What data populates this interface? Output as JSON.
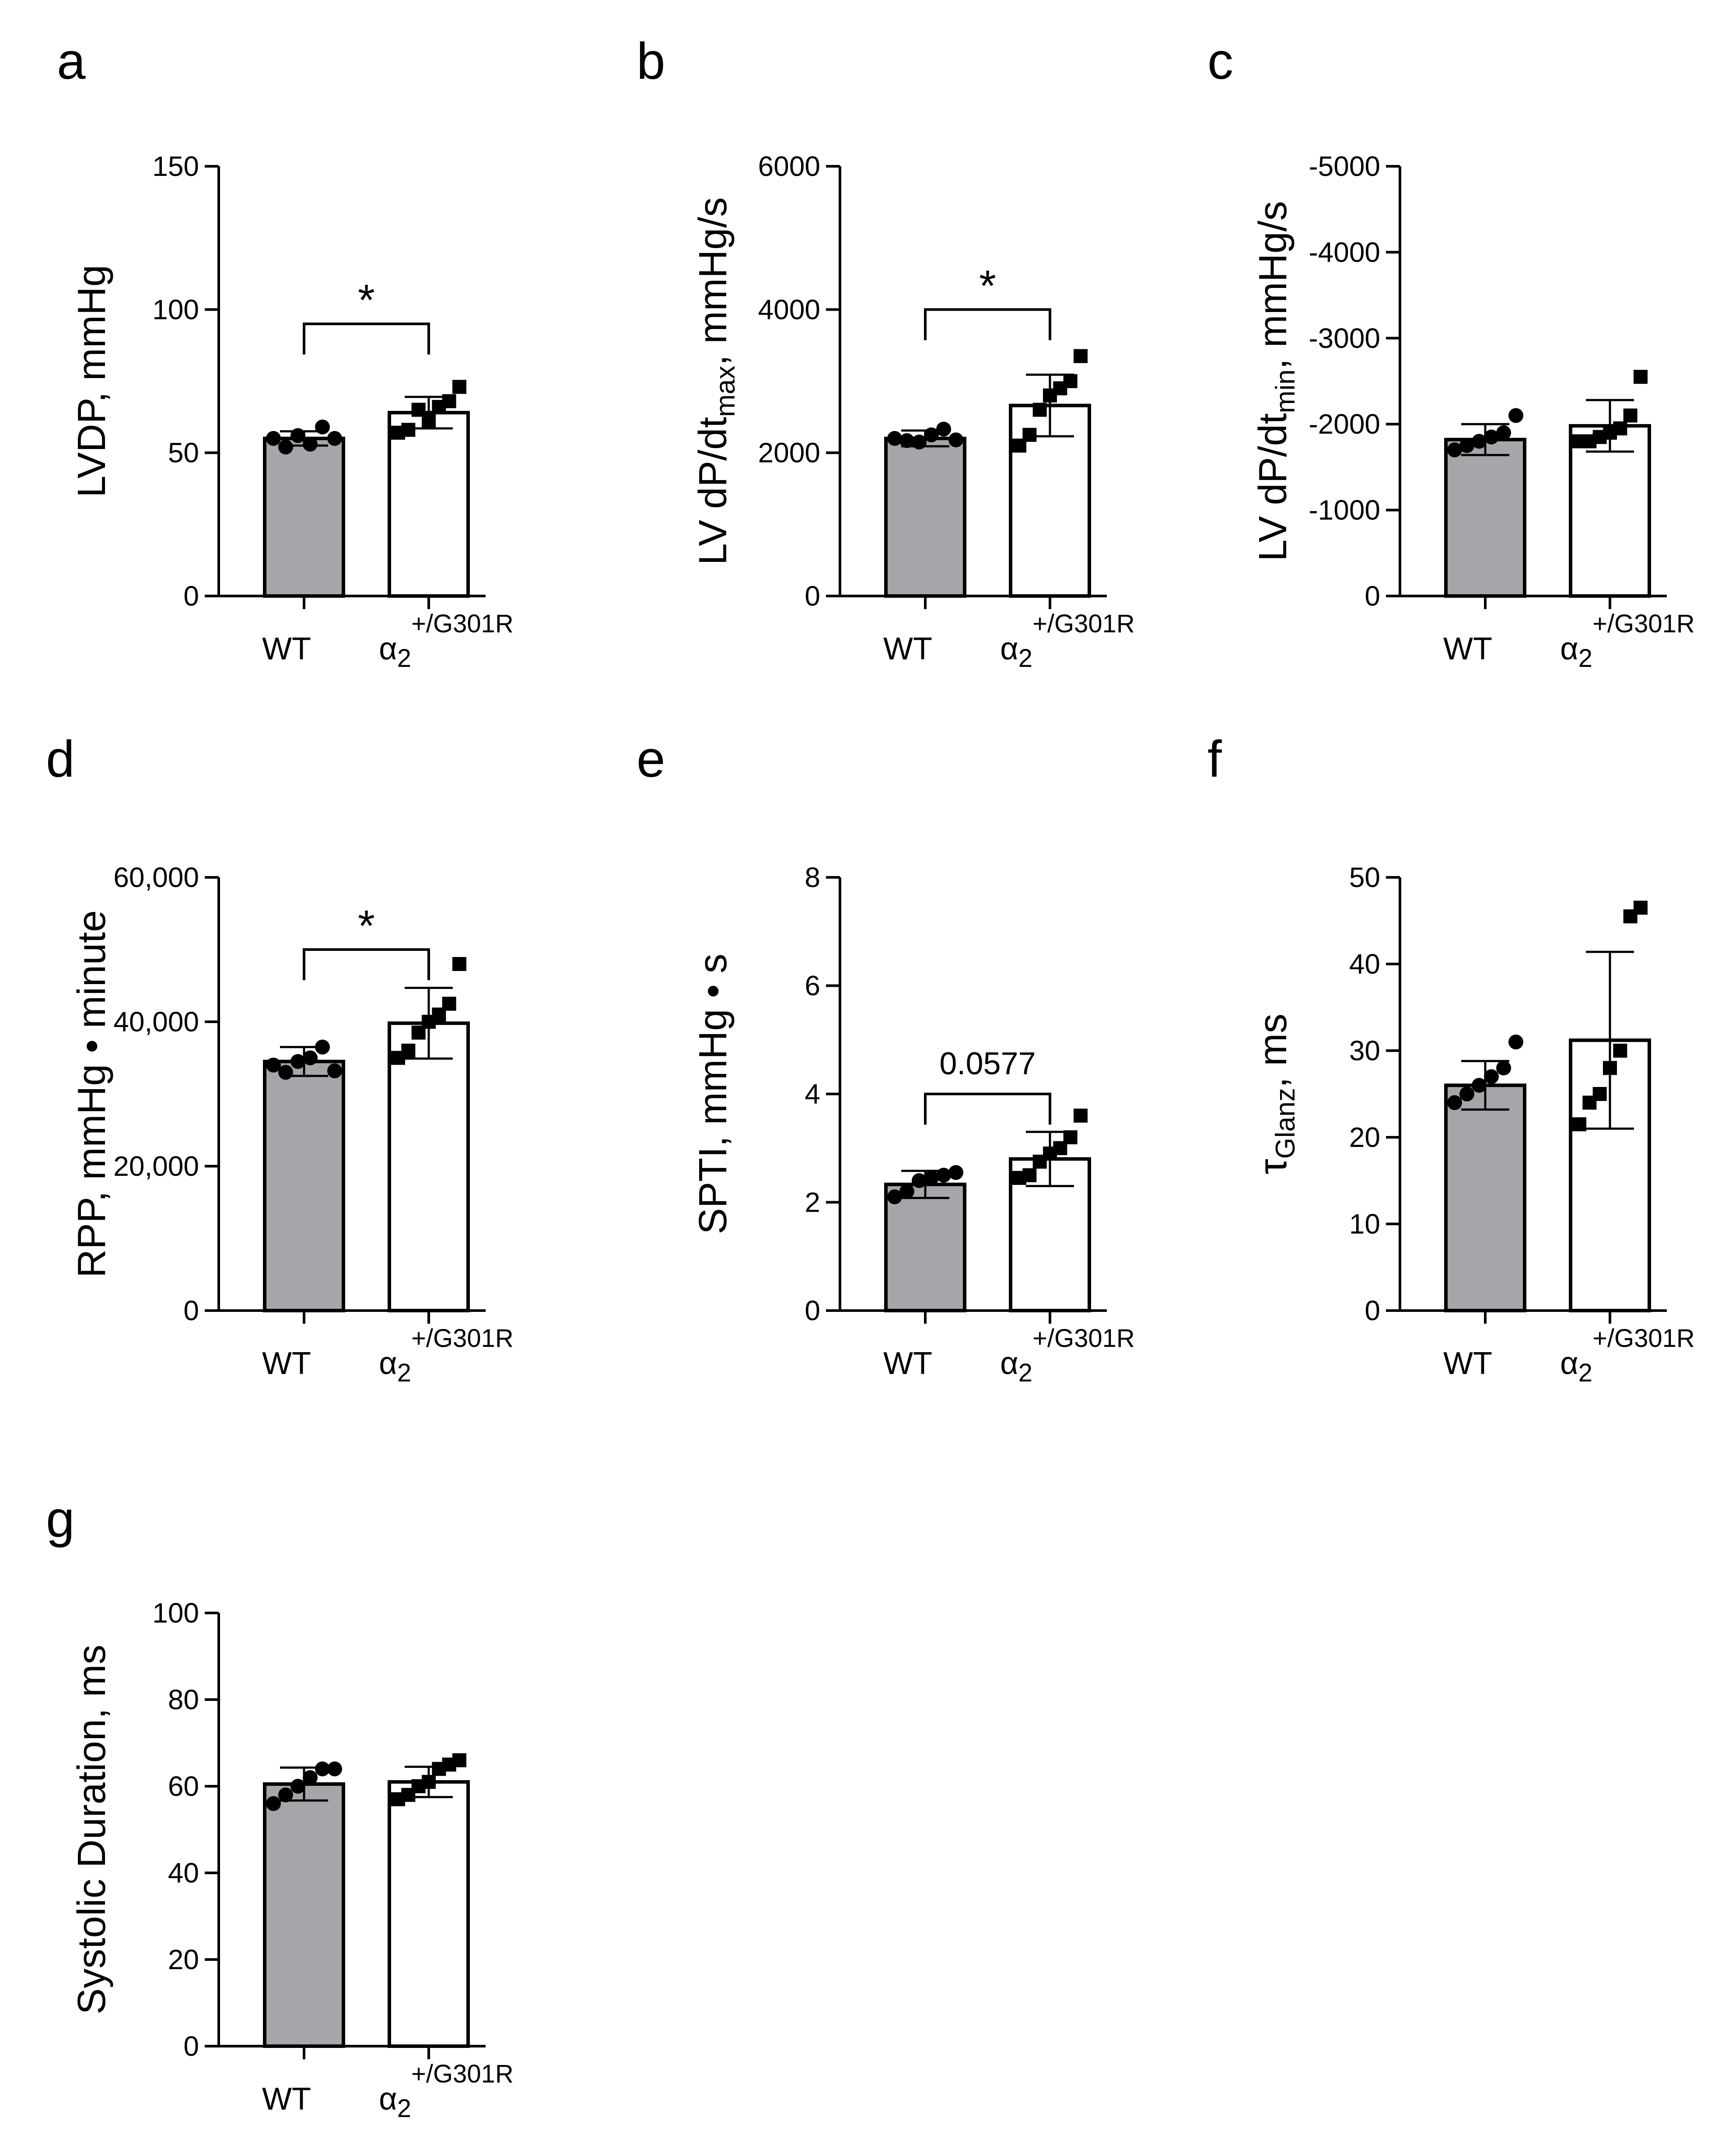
{
  "figure": {
    "panels": [
      "a",
      "b",
      "c",
      "d",
      "e",
      "f",
      "g"
    ]
  },
  "chart_data": [
    {
      "id": "a",
      "type": "bar",
      "ylabel": [
        {
          "t": "LVDP, mmHg"
        }
      ],
      "yticks": [
        "0",
        "50",
        "100",
        "150"
      ],
      "ylim": [
        0,
        150
      ],
      "inverted": false,
      "categories": [
        {
          "name": "WT",
          "sup": "",
          "sub": "",
          "mean": 55,
          "sd": 2.5,
          "fill": "#a6a5aa",
          "marker": "circle",
          "points": [
            55,
            52,
            56,
            53,
            59,
            55
          ]
        },
        {
          "name": "α",
          "sub": "2",
          "sup": "+/G301R",
          "mean": 64,
          "sd": 5.5,
          "fill": "#ffffff",
          "marker": "square",
          "points": [
            57,
            58,
            65,
            61,
            66,
            68,
            73
          ]
        }
      ],
      "significance": {
        "label": "*",
        "kind": "star",
        "y": 95
      }
    },
    {
      "id": "b",
      "type": "bar",
      "ylabel": [
        {
          "t": "LV  dP/dt"
        },
        {
          "t": "max",
          "sub": true
        },
        {
          "t": ", mmHg/s"
        }
      ],
      "yticks": [
        "0",
        "2000",
        "4000",
        "6000"
      ],
      "ylim": [
        0,
        6000
      ],
      "inverted": false,
      "categories": [
        {
          "name": "WT",
          "sup": "",
          "sub": "",
          "mean": 2200,
          "sd": 110,
          "fill": "#a6a5aa",
          "marker": "circle",
          "points": [
            2200,
            2170,
            2150,
            2250,
            2330,
            2180
          ]
        },
        {
          "name": "α",
          "sub": "2",
          "sup": "+/G301R",
          "mean": 2660,
          "sd": 430,
          "fill": "#ffffff",
          "marker": "square",
          "points": [
            2100,
            2250,
            2600,
            2800,
            2900,
            3000,
            3350
          ]
        }
      ],
      "significance": {
        "label": "*",
        "kind": "star",
        "y": 4000
      }
    },
    {
      "id": "c",
      "type": "bar",
      "ylabel": [
        {
          "t": "LV dP/dt"
        },
        {
          "t": "min",
          "sub": true
        },
        {
          "t": ", mmHg/s"
        }
      ],
      "yticks": [
        "0",
        "-1000",
        "-2000",
        "-3000",
        "-4000",
        "-5000"
      ],
      "ylim": [
        0,
        -5000
      ],
      "inverted": true,
      "categories": [
        {
          "name": "WT",
          "sup": "",
          "sub": "",
          "mean": -1820,
          "sd": 180,
          "fill": "#a6a5aa",
          "marker": "circle",
          "points": [
            -1700,
            -1750,
            -1800,
            -1850,
            -1900,
            -2100
          ]
        },
        {
          "name": "α",
          "sub": "2",
          "sup": "+/G301R",
          "mean": -1980,
          "sd": 300,
          "fill": "#ffffff",
          "marker": "square",
          "points": [
            -1800,
            -1800,
            -1850,
            -1900,
            -1950,
            -2100,
            -2550
          ]
        }
      ],
      "significance": null
    },
    {
      "id": "d",
      "type": "bar",
      "ylabel": [
        {
          "t": "RPP, mmHg • minute"
        }
      ],
      "yticks": [
        "0",
        "20,000",
        "40,000",
        "60,000"
      ],
      "ylim": [
        0,
        60000
      ],
      "inverted": false,
      "categories": [
        {
          "name": "WT",
          "sup": "",
          "sub": "",
          "mean": 34500,
          "sd": 2000,
          "fill": "#a6a5aa",
          "marker": "circle",
          "points": [
            34000,
            33000,
            34500,
            35000,
            36500,
            33200
          ]
        },
        {
          "name": "α",
          "sub": "2",
          "sup": "+/G301R",
          "mean": 39800,
          "sd": 4900,
          "fill": "#ffffff",
          "marker": "square",
          "points": [
            35000,
            36000,
            38500,
            40000,
            41000,
            42500,
            48000
          ]
        }
      ],
      "significance": {
        "label": "*",
        "kind": "star",
        "y": 50000
      }
    },
    {
      "id": "e",
      "type": "bar",
      "ylabel": [
        {
          "t": "SPTI, mmHg • s"
        }
      ],
      "yticks": [
        "0",
        "2",
        "4",
        "6",
        "8"
      ],
      "ylim": [
        0,
        8
      ],
      "inverted": false,
      "categories": [
        {
          "name": "WT",
          "sup": "",
          "sub": "",
          "mean": 2.33,
          "sd": 0.25,
          "fill": "#a6a5aa",
          "marker": "circle",
          "points": [
            2.1,
            2.2,
            2.4,
            2.45,
            2.5,
            2.55
          ]
        },
        {
          "name": "α",
          "sub": "2",
          "sup": "+/G301R",
          "mean": 2.8,
          "sd": 0.5,
          "fill": "#ffffff",
          "marker": "square",
          "points": [
            2.45,
            2.5,
            2.75,
            2.9,
            3.0,
            3.2,
            3.6
          ]
        }
      ],
      "significance": {
        "label": "0.0577",
        "kind": "p",
        "y": 4.0
      }
    },
    {
      "id": "f",
      "type": "bar",
      "ylabel": [
        {
          "t": "τ"
        },
        {
          "t": "Glanz",
          "sub": true
        },
        {
          "t": ", ms"
        }
      ],
      "yticks": [
        "0",
        "10",
        "20",
        "30",
        "40",
        "50"
      ],
      "ylim": [
        0,
        50
      ],
      "inverted": false,
      "categories": [
        {
          "name": "WT",
          "sup": "",
          "sub": "",
          "mean": 26,
          "sd": 2.8,
          "fill": "#a6a5aa",
          "marker": "circle",
          "points": [
            24,
            25,
            26,
            27,
            28,
            31
          ]
        },
        {
          "name": "α",
          "sub": "2",
          "sup": "+/G301R",
          "mean": 31.2,
          "sd": 10.2,
          "fill": "#ffffff",
          "marker": "square",
          "points": [
            21.5,
            24,
            25,
            28,
            30,
            45.5,
            46.5
          ]
        }
      ],
      "significance": null
    },
    {
      "id": "g",
      "type": "bar",
      "ylabel": [
        {
          "t": "Systolic Duration, ms"
        }
      ],
      "yticks": [
        "0",
        "20",
        "40",
        "60",
        "80",
        "100"
      ],
      "ylim": [
        0,
        100
      ],
      "inverted": false,
      "categories": [
        {
          "name": "WT",
          "sup": "",
          "sub": "",
          "mean": 60.5,
          "sd": 3.8,
          "fill": "#a6a5aa",
          "marker": "circle",
          "points": [
            56,
            58,
            60,
            62,
            64,
            64
          ]
        },
        {
          "name": "α",
          "sub": "2",
          "sup": "+/G301R",
          "mean": 61,
          "sd": 3.5,
          "fill": "#ffffff",
          "marker": "square",
          "points": [
            57,
            58,
            60,
            61,
            64,
            65,
            66
          ]
        }
      ],
      "significance": null
    }
  ]
}
